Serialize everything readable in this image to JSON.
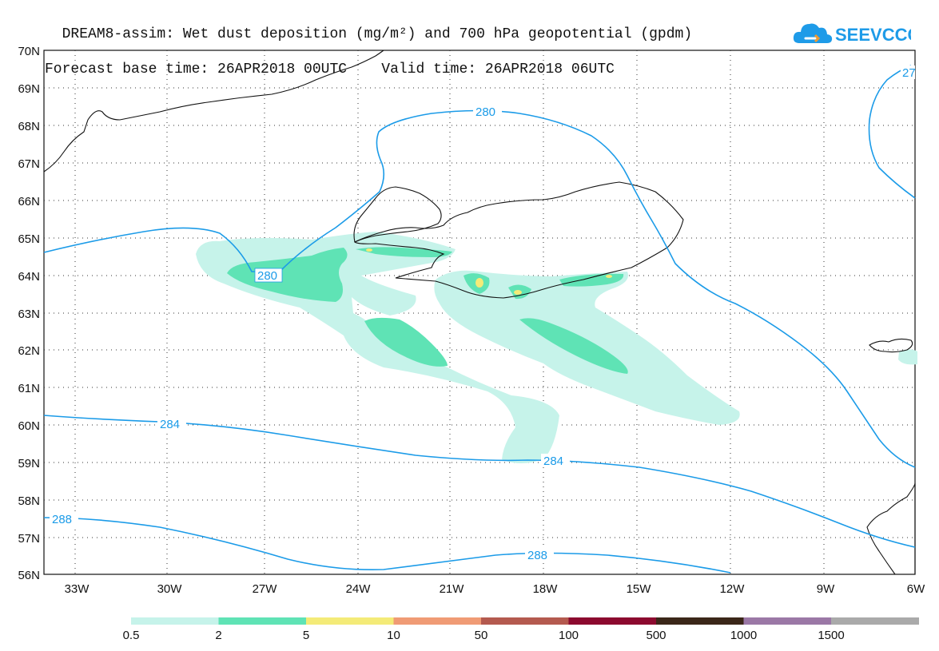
{
  "title": {
    "line1": "DREAM8-assim: Wet dust deposition (mg/m²) and 700 hPa geopotential (gpdm)",
    "line2": "Forecast base time: 26APR2018 00UTC    Valid time: 26APR2018 06UTC"
  },
  "logo": {
    "text": "SEEVCCC",
    "icon": "cloud-logo-icon",
    "color": "#1e9be8"
  },
  "axes": {
    "lat_labels": [
      "70N",
      "69N",
      "68N",
      "67N",
      "66N",
      "65N",
      "64N",
      "63N",
      "62N",
      "61N",
      "60N",
      "59N",
      "58N",
      "57N",
      "56N"
    ],
    "lon_labels": [
      "33W",
      "30W",
      "27W",
      "24W",
      "21W",
      "18W",
      "15W",
      "12W",
      "9W",
      "6W"
    ]
  },
  "contours": {
    "color": "#1b9be8",
    "labels": [
      "280",
      "280",
      "284",
      "284",
      "288",
      "288",
      "27"
    ]
  },
  "colorbar": {
    "colors": [
      "#c6f3ea",
      "#5fe3b5",
      "#f4eb78",
      "#f09b75",
      "#b45a4f",
      "#8c0a2f",
      "#3b2719",
      "#9b78a6",
      "#aaaaaa"
    ],
    "labels": [
      "0.5",
      "2",
      "5",
      "10",
      "50",
      "100",
      "500",
      "1000",
      "1500"
    ]
  }
}
